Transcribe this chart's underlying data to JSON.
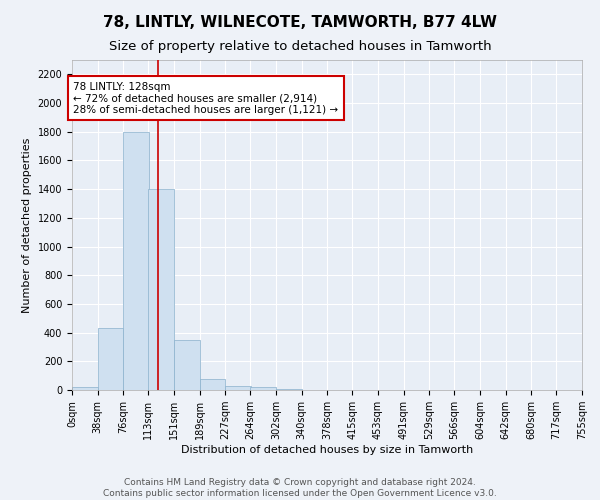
{
  "title": "78, LINTLY, WILNECOTE, TAMWORTH, B77 4LW",
  "subtitle": "Size of property relative to detached houses in Tamworth",
  "xlabel": "Distribution of detached houses by size in Tamworth",
  "ylabel": "Number of detached properties",
  "bin_edges": [
    0,
    38,
    76,
    113,
    151,
    189,
    227,
    264,
    302,
    340,
    378,
    415,
    453,
    491,
    529,
    566,
    604,
    642,
    680,
    717,
    755
  ],
  "bar_heights": [
    20,
    430,
    1800,
    1400,
    350,
    75,
    25,
    20,
    5,
    0,
    0,
    0,
    0,
    0,
    0,
    0,
    0,
    0,
    0,
    0
  ],
  "bar_color": "#cfe0f0",
  "bar_edge_color": "#8ab0cc",
  "property_size": 128,
  "vline_color": "#cc0000",
  "annotation_text": "78 LINTLY: 128sqm\n← 72% of detached houses are smaller (2,914)\n28% of semi-detached houses are larger (1,121) →",
  "annotation_box_color": "#ffffff",
  "annotation_box_edge": "#cc0000",
  "ylim": [
    0,
    2300
  ],
  "yticks": [
    0,
    200,
    400,
    600,
    800,
    1000,
    1200,
    1400,
    1600,
    1800,
    2000,
    2200
  ],
  "tick_labels": [
    "0sqm",
    "38sqm",
    "76sqm",
    "113sqm",
    "151sqm",
    "189sqm",
    "227sqm",
    "264sqm",
    "302sqm",
    "340sqm",
    "378sqm",
    "415sqm",
    "453sqm",
    "491sqm",
    "529sqm",
    "566sqm",
    "604sqm",
    "642sqm",
    "680sqm",
    "717sqm",
    "755sqm"
  ],
  "footer_line1": "Contains HM Land Registry data © Crown copyright and database right 2024.",
  "footer_line2": "Contains public sector information licensed under the Open Government Licence v3.0.",
  "bg_color": "#eef2f8",
  "plot_bg_color": "#e8eef6",
  "grid_color": "#ffffff",
  "title_fontsize": 11,
  "subtitle_fontsize": 9.5,
  "axis_label_fontsize": 8,
  "tick_fontsize": 7,
  "annotation_fontsize": 7.5,
  "footer_fontsize": 6.5
}
